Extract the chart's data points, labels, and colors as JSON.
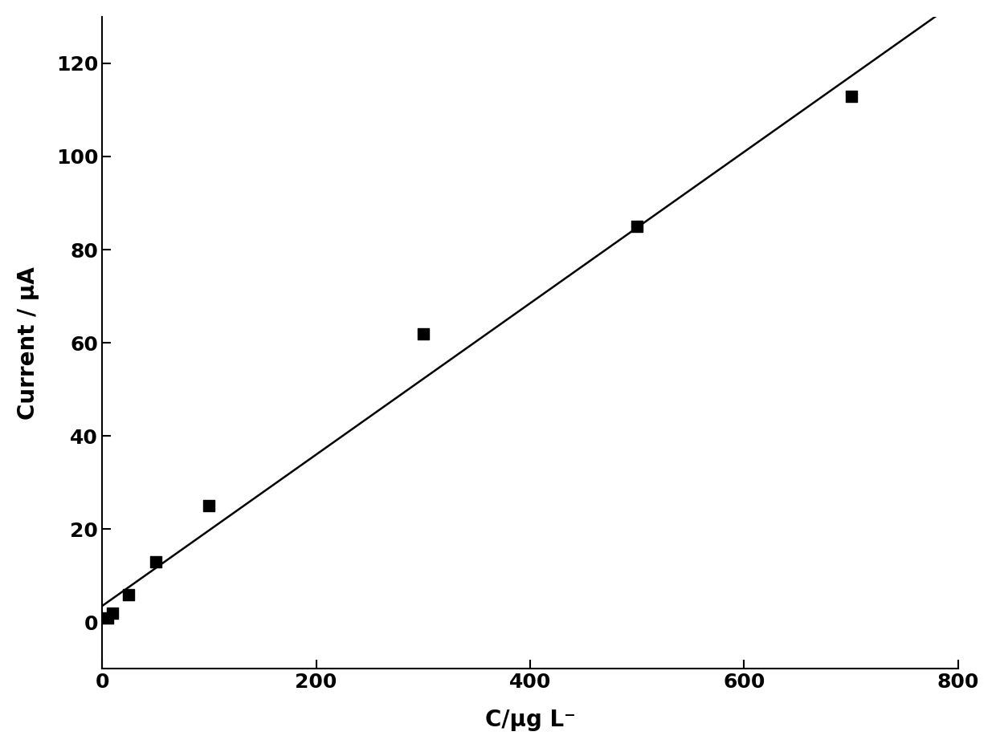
{
  "x_data": [
    5,
    10,
    25,
    50,
    100,
    300,
    500,
    700
  ],
  "y_data": [
    1,
    2,
    6,
    13,
    25,
    62,
    85,
    113
  ],
  "line_x": [
    0,
    780
  ],
  "line_slope": 0.1625,
  "line_intercept": 3.5,
  "xlabel": "C/μg L⁻",
  "ylabel": "Current / μA",
  "xlim": [
    0,
    800
  ],
  "ylim": [
    -10,
    130
  ],
  "xticks": [
    0,
    200,
    400,
    600,
    800
  ],
  "yticks": [
    0,
    20,
    40,
    60,
    80,
    100,
    120
  ],
  "marker_color": "#000000",
  "line_color": "#000000",
  "marker_size": 10,
  "line_width": 1.8,
  "background_color": "#ffffff",
  "title_fontsize": 16,
  "label_fontsize": 20,
  "tick_fontsize": 18
}
